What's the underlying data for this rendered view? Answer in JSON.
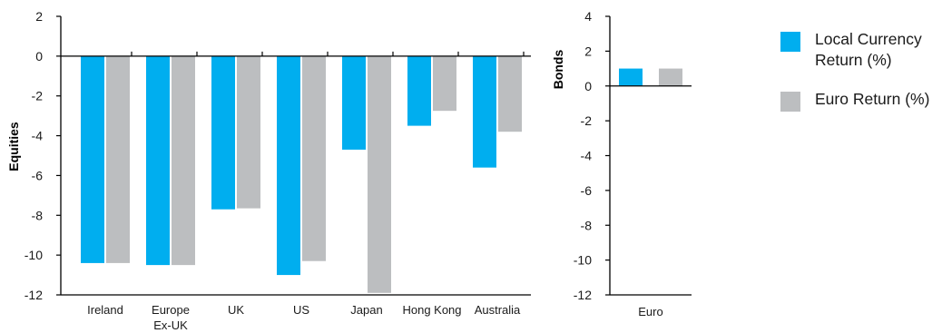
{
  "legend": {
    "local_label": "Local Currency Return (%)",
    "euro_label": "Euro Return (%)"
  },
  "colors": {
    "local": "#00aeef",
    "euro": "#bcbec0"
  },
  "chart_data": [
    {
      "type": "bar",
      "ylabel": "Equities",
      "ylim": [
        -12,
        2
      ],
      "yticks": [
        2,
        0,
        -2,
        -4,
        -6,
        -8,
        -10,
        -12
      ],
      "categories": [
        "Ireland",
        "Europe Ex-UK",
        "UK",
        "US",
        "Japan",
        "Hong Kong",
        "Australia"
      ],
      "series": [
        {
          "name": "Local Currency Return (%)",
          "values": [
            -10.4,
            -10.5,
            -7.7,
            -11.0,
            -4.7,
            -3.5,
            -5.6
          ]
        },
        {
          "name": "Euro Return (%)",
          "values": [
            -10.4,
            -10.5,
            -7.65,
            -10.3,
            -11.9,
            -2.75,
            -3.8
          ]
        }
      ]
    },
    {
      "type": "bar",
      "ylabel": "Bonds",
      "ylim": [
        -12,
        4
      ],
      "yticks": [
        4,
        2,
        0,
        -2,
        -4,
        -6,
        -8,
        -10,
        -12
      ],
      "categories": [
        "Euro"
      ],
      "series": [
        {
          "name": "Local Currency Return (%)",
          "values": [
            1.0
          ]
        },
        {
          "name": "Euro Return (%)",
          "values": [
            1.0
          ]
        }
      ]
    }
  ]
}
